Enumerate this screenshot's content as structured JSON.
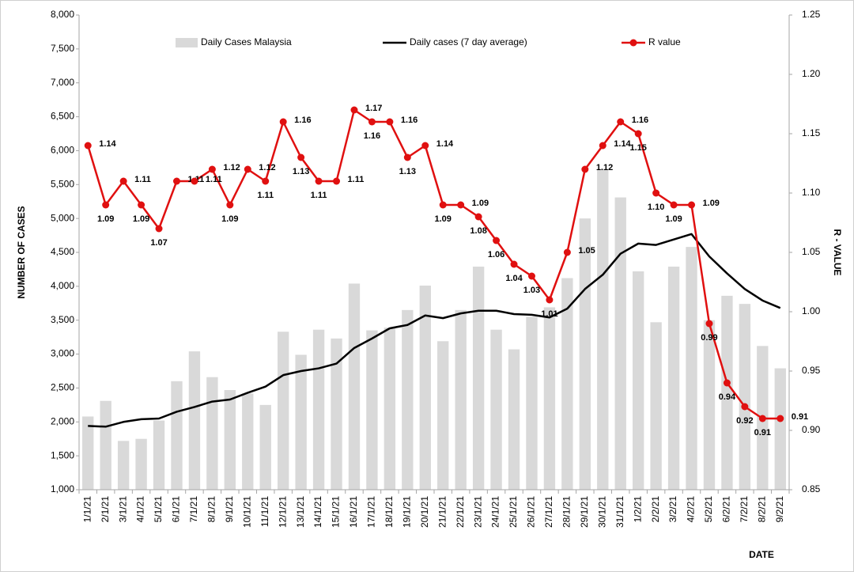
{
  "chart_data": {
    "type": "combo",
    "y_label": "NUMBER OF CASES",
    "y2_label": "R - VALUE",
    "x_label": "DATE",
    "categories": [
      "1/1/21",
      "2/1/21",
      "3/1/21",
      "4/1/21",
      "5/1/21",
      "6/1/21",
      "7/1/21",
      "8/1/21",
      "9/1/21",
      "10/1/21",
      "11/1/21",
      "12/1/21",
      "13/1/21",
      "14/1/21",
      "15/1/21",
      "16/1/21",
      "17/1/21",
      "18/1/21",
      "19/1/21",
      "20/1/21",
      "21/1/21",
      "22/1/21",
      "23/1/21",
      "24/1/21",
      "25/1/21",
      "26/1/21",
      "27/1/21",
      "28/1/21",
      "29/1/21",
      "30/1/21",
      "31/1/21",
      "1/2/21",
      "2/2/21",
      "3/2/21",
      "4/2/21",
      "5/2/21",
      "6/2/21",
      "7/2/21",
      "8/2/21",
      "9/2/21"
    ],
    "series": [
      {
        "name": "Daily Cases Malaysia",
        "kind": "bar",
        "color": "#d9d9d9",
        "axis": "y",
        "values": [
          2080,
          2310,
          1720,
          1750,
          2020,
          2600,
          3040,
          2660,
          2470,
          2420,
          2250,
          3330,
          2990,
          3360,
          3230,
          4040,
          3350,
          3390,
          3650,
          4010,
          3190,
          3650,
          4290,
          3360,
          3070,
          3550,
          3690,
          4120,
          5000,
          5730,
          5310,
          4220,
          3470,
          4290,
          4580,
          3500,
          3860,
          3740,
          3120,
          2790
        ]
      },
      {
        "name": "Daily cases (7 day average)",
        "kind": "line",
        "color": "#000000",
        "axis": "y",
        "values": [
          1940,
          1930,
          2000,
          2040,
          2050,
          2150,
          2220,
          2300,
          2330,
          2430,
          2520,
          2690,
          2750,
          2790,
          2860,
          3090,
          3230,
          3380,
          3430,
          3570,
          3530,
          3600,
          3640,
          3640,
          3590,
          3580,
          3540,
          3670,
          3960,
          4170,
          4480,
          4630,
          4610,
          4690,
          4770,
          4440,
          4190,
          3960,
          3790,
          3680
        ]
      },
      {
        "name": "R value",
        "kind": "line-marker",
        "color": "#e01010",
        "axis": "y2",
        "values": [
          1.14,
          1.09,
          1.11,
          1.09,
          1.07,
          1.11,
          1.11,
          1.12,
          1.09,
          1.12,
          1.11,
          1.16,
          1.13,
          1.11,
          1.11,
          1.17,
          1.16,
          1.16,
          1.13,
          1.14,
          1.09,
          1.09,
          1.08,
          1.06,
          1.04,
          1.03,
          1.01,
          1.05,
          1.12,
          1.14,
          1.16,
          1.15,
          1.1,
          1.09,
          1.09,
          0.99,
          0.94,
          0.92,
          0.91,
          0.91
        ],
        "value_labels": [
          "1.14",
          "1.09",
          "1.11",
          "1.09",
          "1.07",
          "1.11",
          "1.11",
          "1.12",
          "1.09",
          "1.12",
          "1.11",
          "1.16",
          "1.13",
          "1.11",
          "1.11",
          "1.17",
          "1.16",
          "1.16",
          "1.13",
          "1.14",
          "1.09",
          "1.09",
          "1.08",
          "1.06",
          "1.04",
          "1.03",
          "1.01",
          "1.05",
          "1.12",
          "1.14",
          "1.16",
          "1.15",
          "1.10",
          "1.09",
          "1.09",
          "0.99",
          "0.94",
          "0.92",
          "0.91",
          "0.91"
        ]
      }
    ],
    "ylim": [
      1000,
      8000
    ],
    "yticks": [
      {
        "value": 1000,
        "label": "1,000"
      },
      {
        "value": 1500,
        "label": "1,500"
      },
      {
        "value": 2000,
        "label": "2,000"
      },
      {
        "value": 2500,
        "label": "2,500"
      },
      {
        "value": 3000,
        "label": "3,000"
      },
      {
        "value": 3500,
        "label": "3,500"
      },
      {
        "value": 4000,
        "label": "4,000"
      },
      {
        "value": 4500,
        "label": "4,500"
      },
      {
        "value": 5000,
        "label": "5,000"
      },
      {
        "value": 5500,
        "label": "5,500"
      },
      {
        "value": 6000,
        "label": "6,000"
      },
      {
        "value": 6500,
        "label": "6,500"
      },
      {
        "value": 7000,
        "label": "7,000"
      },
      {
        "value": 7500,
        "label": "7,500"
      },
      {
        "value": 8000,
        "label": "8,000"
      }
    ],
    "y2lim": [
      0.85,
      1.25
    ],
    "y2ticks": [
      0.85,
      {
        "value": 0.9,
        "label": "0.90"
      },
      0.95,
      {
        "value": 1,
        "label": "1.00"
      },
      1.05,
      {
        "value": 1.1,
        "label": "1.10"
      },
      1.15,
      {
        "value": 1.2,
        "label": "1.20"
      },
      1.25
    ],
    "legend": "top",
    "grid": false
  }
}
